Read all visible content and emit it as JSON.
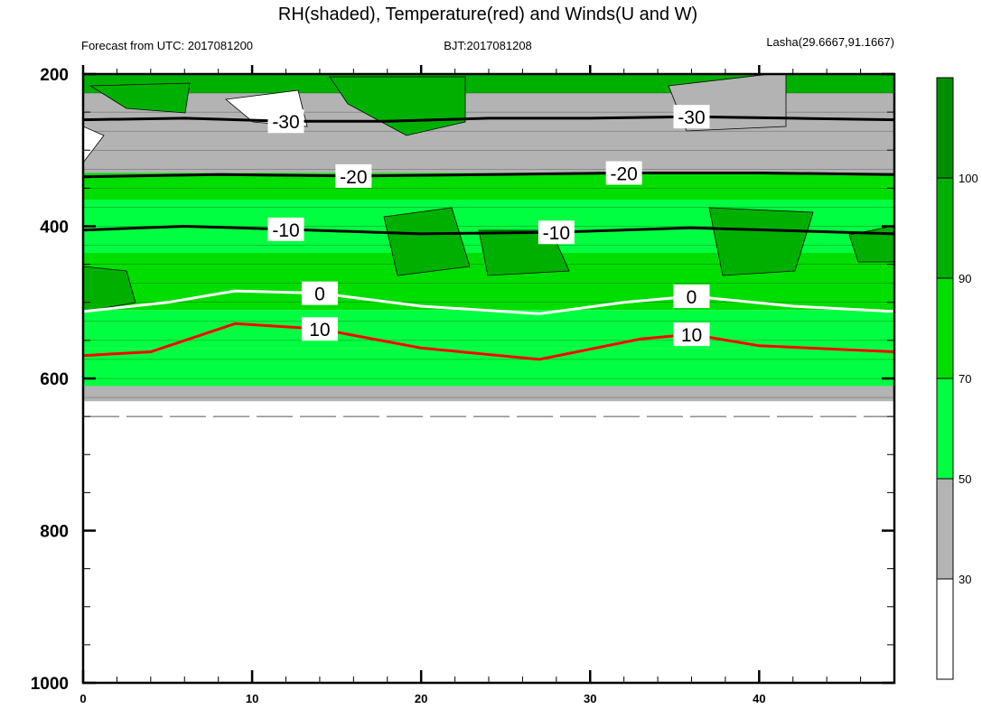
{
  "chart_data": {
    "type": "heatmap",
    "title": "RH(shaded), Temperature(red) and Winds(U and W)",
    "subtitle_left": "Forecast from UTC: 2017081200",
    "subtitle_center": "BJT:2017081208",
    "subtitle_right": "Lasha(29.6667,91.1667)",
    "xlim": [
      0,
      48
    ],
    "ylim": [
      1000,
      200
    ],
    "x_ticks": [
      "0",
      "10",
      "20",
      "30",
      "40"
    ],
    "y_ticks": [
      "200",
      "400",
      "600",
      "800",
      "1000"
    ],
    "colorbar": {
      "levels": [
        "30",
        "50",
        "70",
        "90",
        "100"
      ],
      "colors": [
        "#ffffff",
        "#b3b3b3",
        "#00ff40",
        "#00de00",
        "#00b000",
        "#008f00"
      ]
    },
    "surface_pressure": 650,
    "rh_bands": [
      {
        "top": 200,
        "bottom": 225,
        "color": "#00b000"
      },
      {
        "top": 225,
        "bottom": 330,
        "color": "#b3b3b3"
      },
      {
        "top": 330,
        "bottom": 365,
        "color": "#00de00"
      },
      {
        "top": 365,
        "bottom": 435,
        "color": "#00ff40"
      },
      {
        "top": 435,
        "bottom": 470,
        "color": "#00de00"
      },
      {
        "top": 470,
        "bottom": 510,
        "color": "#00de00"
      },
      {
        "top": 510,
        "bottom": 560,
        "color": "#00ff40"
      },
      {
        "top": 560,
        "bottom": 610,
        "color": "#00ff40"
      },
      {
        "top": 610,
        "bottom": 630,
        "color": "#b3b3b3"
      }
    ],
    "temperature_contours": [
      {
        "label": "-30",
        "color": "#000000",
        "points": [
          [
            0,
            260
          ],
          [
            6,
            258
          ],
          [
            12,
            262
          ],
          [
            18,
            262
          ],
          [
            24,
            258
          ],
          [
            30,
            258
          ],
          [
            36,
            256
          ],
          [
            42,
            258
          ],
          [
            48,
            260
          ]
        ]
      },
      {
        "label": "-20",
        "color": "#000000",
        "points": [
          [
            0,
            335
          ],
          [
            8,
            332
          ],
          [
            16,
            334
          ],
          [
            24,
            332
          ],
          [
            32,
            330
          ],
          [
            40,
            330
          ],
          [
            48,
            332
          ]
        ]
      },
      {
        "label": "-10",
        "color": "#000000",
        "points": [
          [
            0,
            405
          ],
          [
            6,
            400
          ],
          [
            12,
            404
          ],
          [
            20,
            410
          ],
          [
            28,
            408
          ],
          [
            36,
            402
          ],
          [
            48,
            410
          ]
        ]
      },
      {
        "label": "0",
        "color": "#ffffff",
        "points": [
          [
            0,
            512
          ],
          [
            5,
            500
          ],
          [
            9,
            485
          ],
          [
            14,
            488
          ],
          [
            20,
            505
          ],
          [
            27,
            515
          ],
          [
            32,
            500
          ],
          [
            36,
            492
          ],
          [
            42,
            505
          ],
          [
            48,
            512
          ]
        ]
      },
      {
        "label": "10",
        "color": "#ff0000",
        "points": [
          [
            0,
            570
          ],
          [
            4,
            565
          ],
          [
            9,
            528
          ],
          [
            14,
            535
          ],
          [
            20,
            560
          ],
          [
            27,
            575
          ],
          [
            33,
            548
          ],
          [
            36,
            542
          ],
          [
            40,
            557
          ],
          [
            48,
            565
          ]
        ]
      }
    ]
  }
}
